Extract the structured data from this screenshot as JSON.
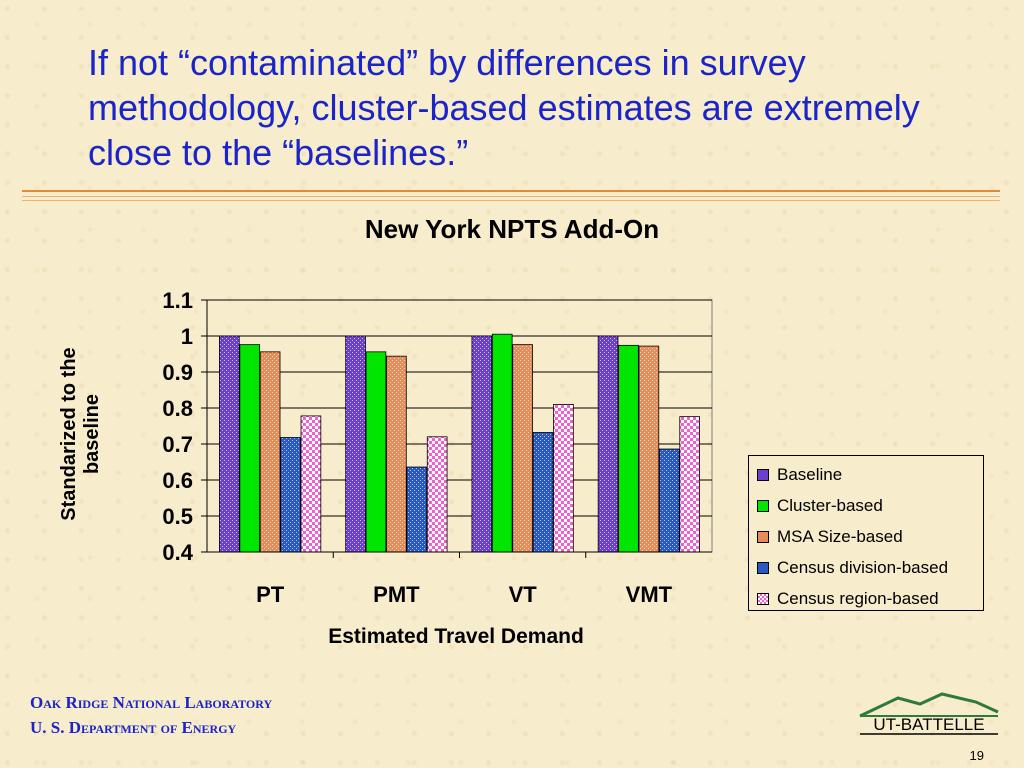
{
  "slide": {
    "title": "If not “contaminated” by differences in survey methodology, cluster-based estimates are extremely close to the “baselines.”",
    "footer_line1": "Oak Ridge National Laboratory",
    "footer_line2": "U. S. Department of Energy",
    "logo_text": "UT-BATTELLE",
    "page_number": "19",
    "title_color": "#1a24c8"
  },
  "chart_data": {
    "type": "bar",
    "title": "New York NPTS Add-On",
    "xlabel": "Estimated Travel Demand",
    "ylabel": "Standarized to the baseline",
    "categories": [
      "PT",
      "PMT",
      "VT",
      "VMT"
    ],
    "ylim": [
      0.4,
      1.1
    ],
    "yticks": [
      "0.4",
      "0.5",
      "0.6",
      "0.7",
      "0.8",
      "0.9",
      "1",
      "1.1"
    ],
    "grid": true,
    "legend_position": "right",
    "series": [
      {
        "name": "Baseline",
        "color": "#6b3fd0",
        "pattern": "dots",
        "values": [
          1.0,
          1.0,
          1.0,
          1.0
        ]
      },
      {
        "name": "Cluster-based",
        "color": "#00e600",
        "pattern": "solid",
        "values": [
          0.976,
          0.956,
          1.005,
          0.974
        ]
      },
      {
        "name": "MSA Size-based",
        "color": "#e88a5a",
        "pattern": "dots",
        "values": [
          0.956,
          0.944,
          0.976,
          0.972
        ]
      },
      {
        "name": "Census division-based",
        "color": "#2a58c8",
        "pattern": "dots",
        "values": [
          0.718,
          0.636,
          0.732,
          0.686
        ]
      },
      {
        "name": "Census region-based",
        "color": "#f060d0",
        "pattern": "checker",
        "values": [
          0.778,
          0.72,
          0.81,
          0.776
        ]
      }
    ]
  }
}
